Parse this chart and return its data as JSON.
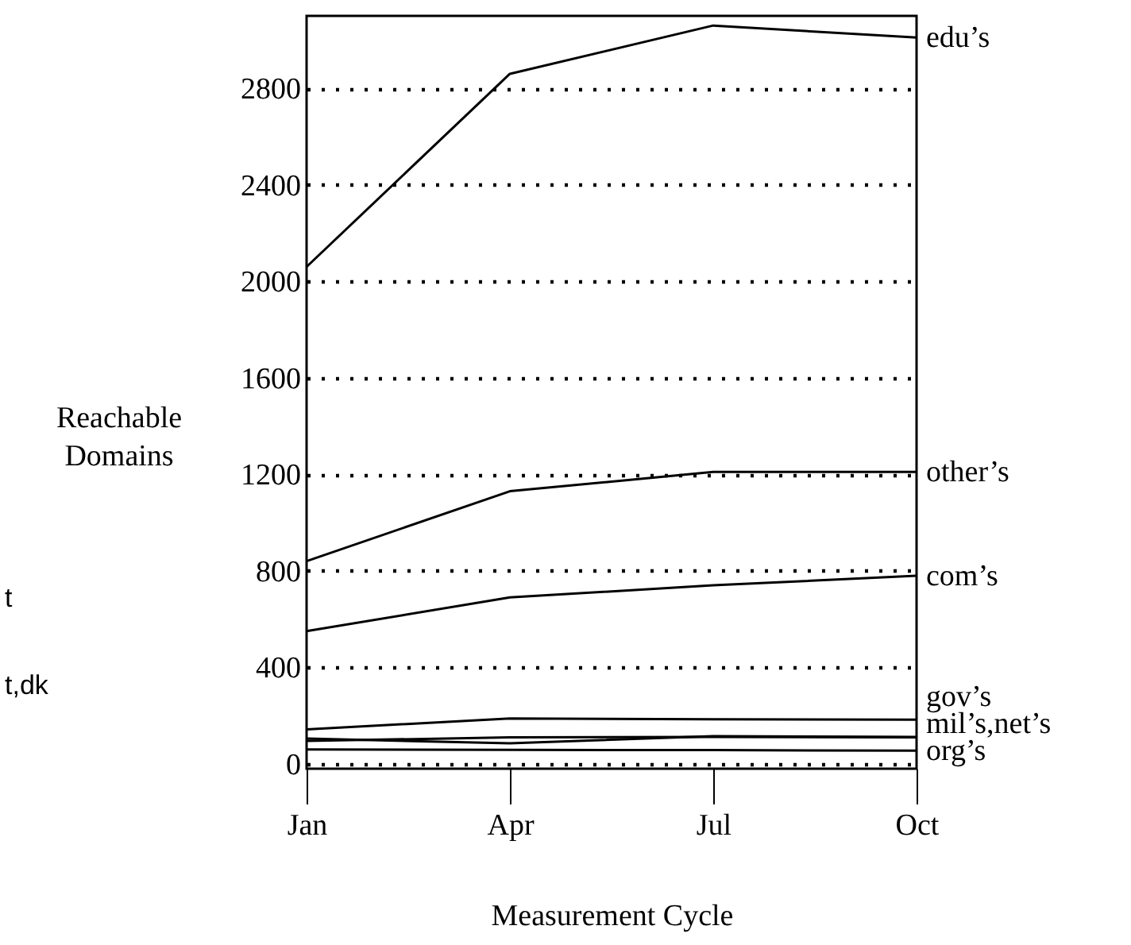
{
  "chart_data": {
    "type": "line",
    "xlabel": "Measurement Cycle",
    "ylabel": "Reachable Domains",
    "categories": [
      "Jan",
      "Apr",
      "Jul",
      "Oct"
    ],
    "series": [
      {
        "name": "edu’s",
        "color": "#000000",
        "values": [
          2060,
          2860,
          3060,
          3010
        ]
      },
      {
        "name": "other’s",
        "color": "#000000",
        "values": [
          840,
          1130,
          1210,
          1210
        ]
      },
      {
        "name": "com’s",
        "color": "#000000",
        "values": [
          550,
          690,
          740,
          780
        ]
      },
      {
        "name": "gov’s",
        "color": "#000000",
        "values": [
          143,
          188,
          185,
          183
        ]
      },
      {
        "color": "#000000",
        "values": [
          105,
          85,
          115,
          112
        ]
      },
      {
        "color": "#000000",
        "values": [
          95,
          110,
          112,
          110
        ]
      },
      {
        "name": "org’s",
        "color": "#000000",
        "values": [
          60,
          58,
          57,
          55
        ]
      }
    ],
    "annotations": [
      {
        "text": "mil’s,net’s",
        "x": "Oct",
        "y": 110
      },
      "t",
      "t,dk"
    ],
    "ylim": [
      -20,
      3100
    ],
    "yticks": [
      0,
      400,
      800,
      1200,
      1600,
      2000,
      2400,
      2800
    ],
    "grid": "y",
    "marker": "none",
    "line_style": "solid"
  }
}
